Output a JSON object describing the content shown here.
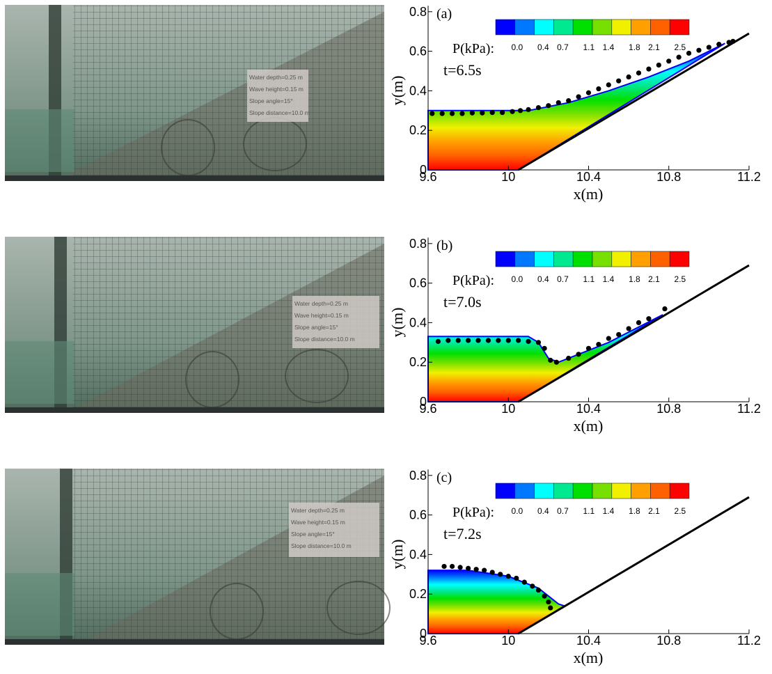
{
  "photos": [
    {
      "labels": [
        "Water depth=0.25 m",
        "Wave height=0.15 m",
        "Slope angle=15°",
        "Slope distance=10.0 m"
      ]
    },
    {
      "labels": [
        "Water depth=0.25 m",
        "Wave height=0.15 m",
        "Slope angle=15°",
        "Slope distance=10.0 m"
      ]
    },
    {
      "labels": [
        "Water depth=0.25 m",
        "Wave height=0.15 m",
        "Slope angle=15°",
        "Slope distance=10.0 m"
      ]
    }
  ],
  "chart_data": [
    {
      "type": "scatter",
      "panel_label": "(a)",
      "time_label": "t=6.5s",
      "xlabel": "x(m)",
      "ylabel": "y(m)",
      "xlim": [
        9.6,
        11.2
      ],
      "ylim": [
        0,
        0.83
      ],
      "xticks": [
        9.6,
        10,
        10.4,
        10.8,
        11.2
      ],
      "yticks": [
        0,
        0.2,
        0.4,
        0.6,
        0.8
      ],
      "colorbar": {
        "label": "P(kPa):",
        "clim": [
          -0.33,
          2.64
        ],
        "colors": [
          "#0000ff",
          "#0078ff",
          "#00ffff",
          "#00e890",
          "#00e000",
          "#78e000",
          "#f0f000",
          "#ffa000",
          "#ff6000",
          "#ff0000"
        ],
        "ticks": [
          {
            "value": 0,
            "label": "0.0"
          },
          {
            "value": 0.4,
            "label": "0.4"
          },
          {
            "value": 0.7,
            "label": "0.7"
          },
          {
            "value": 1.1,
            "label": "1.1"
          },
          {
            "value": 1.4,
            "label": "1.4"
          },
          {
            "value": 1.8,
            "label": "1.8"
          },
          {
            "value": 2.1,
            "label": "2.1"
          },
          {
            "value": 2.5,
            "label": "2.5"
          }
        ]
      },
      "surface": {
        "x": [
          9.6,
          10.1,
          10.3,
          10.5,
          10.7,
          10.9,
          11.08
        ],
        "y": [
          0.3,
          0.3,
          0.34,
          0.4,
          0.47,
          0.55,
          0.64
        ]
      },
      "slope": {
        "x": [
          10.05,
          11.2
        ],
        "y": [
          0,
          0.69
        ],
        "color": "#000000"
      },
      "series": [
        {
          "color": "#000000",
          "x": [
            9.62,
            9.67,
            9.72,
            9.77,
            9.82,
            9.87,
            9.92,
            9.97,
            10.02,
            10.06,
            10.1,
            10.15,
            10.2,
            10.25,
            10.3,
            10.35,
            10.4,
            10.45,
            10.5,
            10.55,
            10.6,
            10.65,
            10.7,
            10.75,
            10.8,
            10.85,
            10.9,
            10.95,
            11.0,
            11.05,
            11.1,
            11.12
          ],
          "y": [
            0.285,
            0.285,
            0.285,
            0.285,
            0.288,
            0.288,
            0.29,
            0.29,
            0.295,
            0.3,
            0.305,
            0.315,
            0.325,
            0.34,
            0.35,
            0.37,
            0.39,
            0.41,
            0.43,
            0.45,
            0.47,
            0.49,
            0.51,
            0.53,
            0.55,
            0.57,
            0.59,
            0.605,
            0.62,
            0.635,
            0.645,
            0.65
          ]
        }
      ]
    },
    {
      "type": "scatter",
      "panel_label": "(b)",
      "time_label": "t=7.0s",
      "xlabel": "x(m)",
      "ylabel": "y(m)",
      "xlim": [
        9.6,
        11.2
      ],
      "ylim": [
        0,
        0.83
      ],
      "xticks": [
        9.6,
        10,
        10.4,
        10.8,
        11.2
      ],
      "yticks": [
        0,
        0.2,
        0.4,
        0.6,
        0.8
      ],
      "colorbar": {
        "label": "P(kPa):",
        "clim": [
          -0.33,
          2.64
        ],
        "colors": [
          "#0000ff",
          "#0078ff",
          "#00ffff",
          "#00e890",
          "#00e000",
          "#78e000",
          "#f0f000",
          "#ffa000",
          "#ff6000",
          "#ff0000"
        ],
        "ticks": [
          {
            "value": 0,
            "label": "0.0"
          },
          {
            "value": 0.4,
            "label": "0.4"
          },
          {
            "value": 0.7,
            "label": "0.7"
          },
          {
            "value": 1.1,
            "label": "1.1"
          },
          {
            "value": 1.4,
            "label": "1.4"
          },
          {
            "value": 1.8,
            "label": "1.8"
          },
          {
            "value": 2.1,
            "label": "2.1"
          },
          {
            "value": 2.5,
            "label": "2.5"
          }
        ]
      },
      "surface": {
        "x": [
          9.6,
          10.1,
          10.15,
          10.2,
          10.25,
          10.5,
          10.77
        ],
        "y": [
          0.33,
          0.33,
          0.3,
          0.22,
          0.2,
          0.3,
          0.44
        ]
      },
      "slope": {
        "x": [
          10.05,
          11.2
        ],
        "y": [
          0,
          0.69
        ],
        "color": "#000000"
      },
      "series": [
        {
          "color": "#000000",
          "x": [
            9.65,
            9.7,
            9.75,
            9.8,
            9.85,
            9.9,
            9.95,
            10.0,
            10.05,
            10.1,
            10.15,
            10.18,
            10.21,
            10.24,
            10.3,
            10.35,
            10.4,
            10.45,
            10.5,
            10.55,
            10.6,
            10.65,
            10.7,
            10.78
          ],
          "y": [
            0.305,
            0.31,
            0.31,
            0.31,
            0.31,
            0.31,
            0.31,
            0.31,
            0.31,
            0.305,
            0.3,
            0.27,
            0.21,
            0.2,
            0.22,
            0.24,
            0.27,
            0.29,
            0.32,
            0.34,
            0.37,
            0.4,
            0.42,
            0.47
          ]
        }
      ]
    },
    {
      "type": "scatter",
      "panel_label": "(c)",
      "time_label": "t=7.2s",
      "xlabel": "x(m)",
      "ylabel": "y(m)",
      "xlim": [
        9.6,
        11.2
      ],
      "ylim": [
        0,
        0.83
      ],
      "xticks": [
        9.6,
        10,
        10.4,
        10.8,
        11.2
      ],
      "yticks": [
        0,
        0.2,
        0.4,
        0.6,
        0.8
      ],
      "colorbar": {
        "label": "P(kPa):",
        "clim": [
          -0.33,
          2.64
        ],
        "colors": [
          "#0000ff",
          "#0078ff",
          "#00ffff",
          "#00e890",
          "#00e000",
          "#78e000",
          "#f0f000",
          "#ffa000",
          "#ff6000",
          "#ff0000"
        ],
        "ticks": [
          {
            "value": 0,
            "label": "0.0"
          },
          {
            "value": 0.4,
            "label": "0.4"
          },
          {
            "value": 0.7,
            "label": "0.7"
          },
          {
            "value": 1.1,
            "label": "1.1"
          },
          {
            "value": 1.4,
            "label": "1.4"
          },
          {
            "value": 1.8,
            "label": "1.8"
          },
          {
            "value": 2.1,
            "label": "2.1"
          },
          {
            "value": 2.5,
            "label": "2.5"
          }
        ]
      },
      "surface": {
        "x": [
          9.6,
          9.8,
          10.0,
          10.15,
          10.25,
          10.28
        ],
        "y": [
          0.32,
          0.32,
          0.29,
          0.23,
          0.15,
          0.14
        ]
      },
      "slope": {
        "x": [
          10.05,
          11.2
        ],
        "y": [
          0,
          0.69
        ],
        "color": "#000000"
      },
      "series": [
        {
          "color": "#000000",
          "x": [
            9.68,
            9.72,
            9.76,
            9.8,
            9.84,
            9.88,
            9.92,
            9.96,
            10.0,
            10.04,
            10.08,
            10.12,
            10.15,
            10.18,
            10.2,
            10.21
          ],
          "y": [
            0.34,
            0.34,
            0.335,
            0.33,
            0.325,
            0.32,
            0.31,
            0.3,
            0.29,
            0.28,
            0.26,
            0.24,
            0.22,
            0.19,
            0.16,
            0.13
          ]
        }
      ]
    }
  ]
}
